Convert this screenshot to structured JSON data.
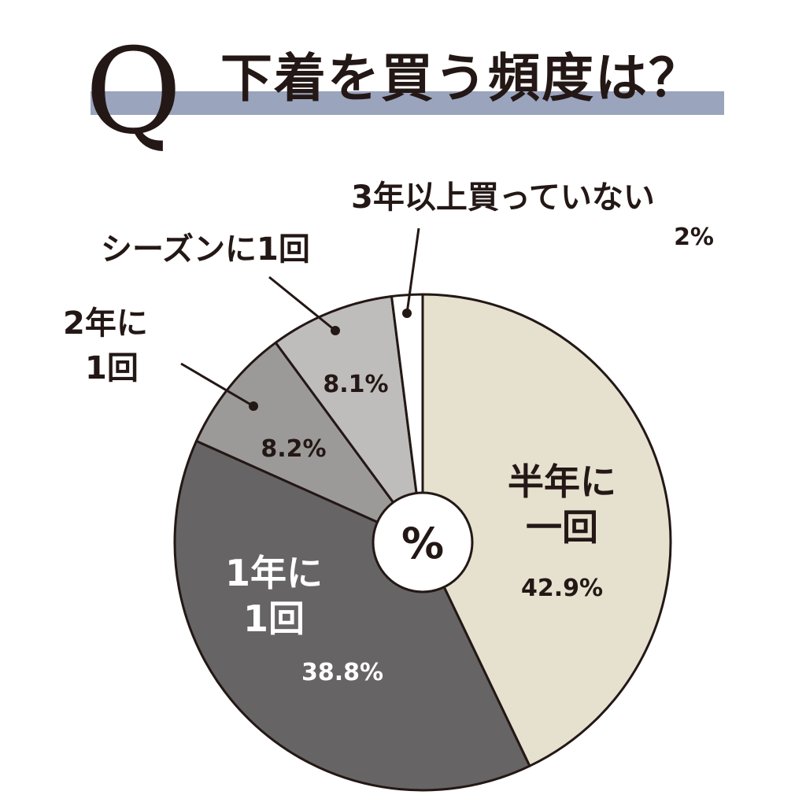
{
  "header": {
    "q_mark": "Q",
    "title": "下着を買う頻度は？",
    "band_color": "#9ba4bd"
  },
  "chart_data": {
    "type": "pie",
    "unit_label": "%",
    "start": "12 o'clock",
    "direction": "clockwise",
    "slices": [
      {
        "label_lines": [
          "半年に",
          "一回"
        ],
        "value": 42.9,
        "value_label": "42.9%",
        "color": "#e6e0cf",
        "text_color": "#231815"
      },
      {
        "label_lines": [
          "1年に",
          "1回"
        ],
        "value": 38.8,
        "value_label": "38.8%",
        "color": "#666464",
        "text_color": "#ffffff"
      },
      {
        "label_lines": [
          "2年に",
          "1回"
        ],
        "value": 8.2,
        "value_label": "8.2%",
        "color": "#9c9a99",
        "text_color": "#231815"
      },
      {
        "label_lines": [
          "シーズンに1回"
        ],
        "value": 8.1,
        "value_label": "8.1%",
        "color": "#bebdbc",
        "text_color": "#231815"
      },
      {
        "label_lines": [
          "3年以上買っていない"
        ],
        "value": 2,
        "value_label": "2%",
        "color": "#ffffff",
        "text_color": "#231815"
      }
    ]
  }
}
